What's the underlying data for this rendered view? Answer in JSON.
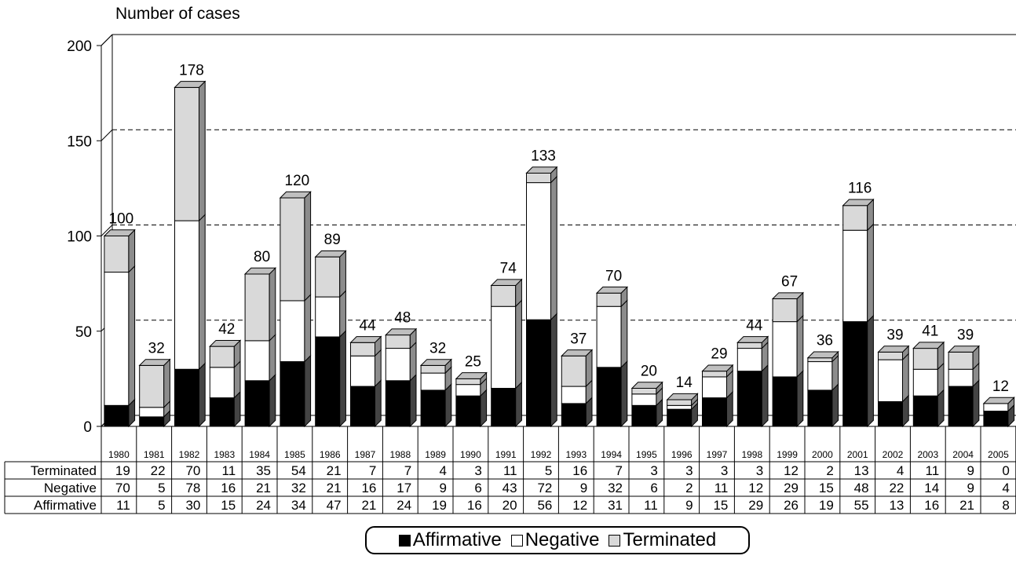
{
  "chart_data": {
    "type": "bar",
    "stacked": true,
    "three_d": true,
    "ylabel": "Number of cases",
    "ylim": [
      0,
      200
    ],
    "yticks": [
      0,
      50,
      100,
      150,
      200
    ],
    "grid": "dashed horizontal at 50, 100, 150",
    "legend": "bottom",
    "categories": [
      "1980",
      "1981",
      "1982",
      "1983",
      "1984",
      "1985",
      "1986",
      "1987",
      "1988",
      "1989",
      "1990",
      "1991",
      "1992",
      "1993",
      "1994",
      "1995",
      "1996",
      "1997",
      "1998",
      "1999",
      "2000",
      "2001",
      "2002",
      "2003",
      "2004",
      "2005"
    ],
    "totals": [
      100,
      32,
      178,
      42,
      80,
      120,
      89,
      44,
      48,
      32,
      25,
      74,
      133,
      37,
      70,
      20,
      14,
      29,
      44,
      67,
      36,
      116,
      39,
      41,
      39,
      12
    ],
    "series": [
      {
        "name": "Affirmative",
        "color": "#000000",
        "values": [
          11,
          5,
          30,
          15,
          24,
          34,
          47,
          21,
          24,
          19,
          16,
          20,
          56,
          12,
          31,
          11,
          9,
          15,
          29,
          26,
          19,
          55,
          13,
          16,
          21,
          8
        ]
      },
      {
        "name": "Negative",
        "color": "#ffffff",
        "values": [
          70,
          5,
          78,
          16,
          21,
          32,
          21,
          16,
          17,
          9,
          6,
          43,
          72,
          9,
          32,
          6,
          2,
          11,
          12,
          29,
          15,
          48,
          22,
          14,
          9,
          4
        ]
      },
      {
        "name": "Terminated",
        "color": "#d9d9d9",
        "values": [
          19,
          22,
          70,
          11,
          35,
          54,
          21,
          7,
          7,
          4,
          3,
          11,
          5,
          16,
          7,
          3,
          3,
          3,
          3,
          12,
          2,
          13,
          4,
          11,
          9,
          0
        ]
      }
    ],
    "table_rows": [
      "Terminated",
      "Negative",
      "Affirmative"
    ]
  }
}
